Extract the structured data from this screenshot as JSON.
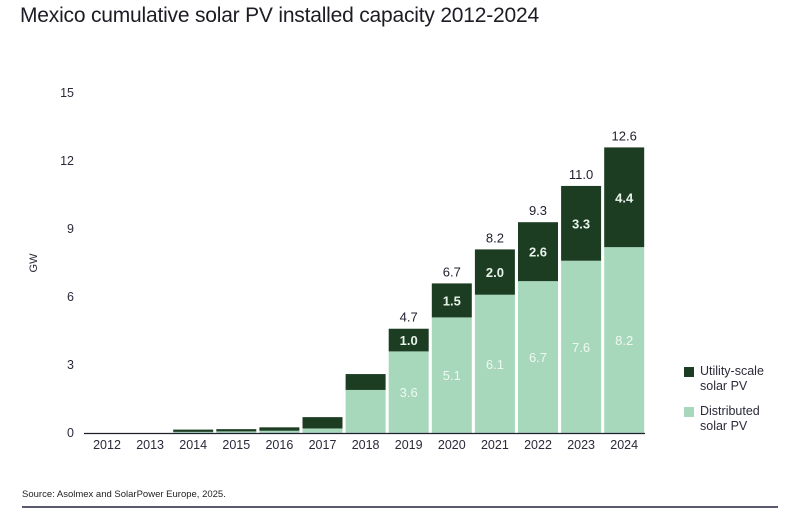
{
  "chart_data": {
    "type": "bar",
    "stacked": true,
    "title": "Mexico cumulative solar PV installed capacity 2012-2024",
    "xlabel": "",
    "ylabel": "GW",
    "ylim": [
      0,
      15
    ],
    "yticks": [
      0,
      3,
      6,
      9,
      12,
      15
    ],
    "grid": false,
    "legend_position": "right",
    "categories": [
      "2012",
      "2013",
      "2014",
      "2015",
      "2016",
      "2017",
      "2018",
      "2019",
      "2020",
      "2021",
      "2022",
      "2023",
      "2024"
    ],
    "series": [
      {
        "name": "Distributed solar PV",
        "color": "#a8d8bc",
        "values": [
          0.0,
          0.0,
          0.05,
          0.07,
          0.1,
          0.2,
          1.9,
          3.6,
          5.1,
          6.1,
          6.7,
          7.6,
          8.2
        ],
        "labels": [
          "",
          "",
          "",
          "",
          "",
          "",
          "",
          "3.6",
          "5.1",
          "6.1",
          "6.7",
          "7.6",
          "8.2"
        ]
      },
      {
        "name": "Utility-scale solar PV",
        "color": "#1c3d22",
        "values": [
          0.0,
          0.0,
          0.1,
          0.1,
          0.15,
          0.5,
          0.7,
          1.0,
          1.5,
          2.0,
          2.6,
          3.3,
          4.4
        ],
        "labels": [
          "",
          "",
          "",
          "",
          "",
          "",
          "",
          "1.0",
          "1.5",
          "2.0",
          "2.6",
          "3.3",
          "4.4"
        ]
      }
    ],
    "totals": [
      "",
      "",
      "",
      "",
      "",
      "",
      "",
      "4.7",
      "6.7",
      "8.2",
      "9.3",
      "11.0",
      "12.6"
    ]
  },
  "legend": [
    {
      "line1": "Utility-scale",
      "line2": "solar PV",
      "color": "#1c3d22"
    },
    {
      "line1": "Distributed",
      "line2": "solar PV",
      "color": "#a8d8bc"
    }
  ],
  "source": "Source: Asolmex and SolarPower Europe, 2025."
}
